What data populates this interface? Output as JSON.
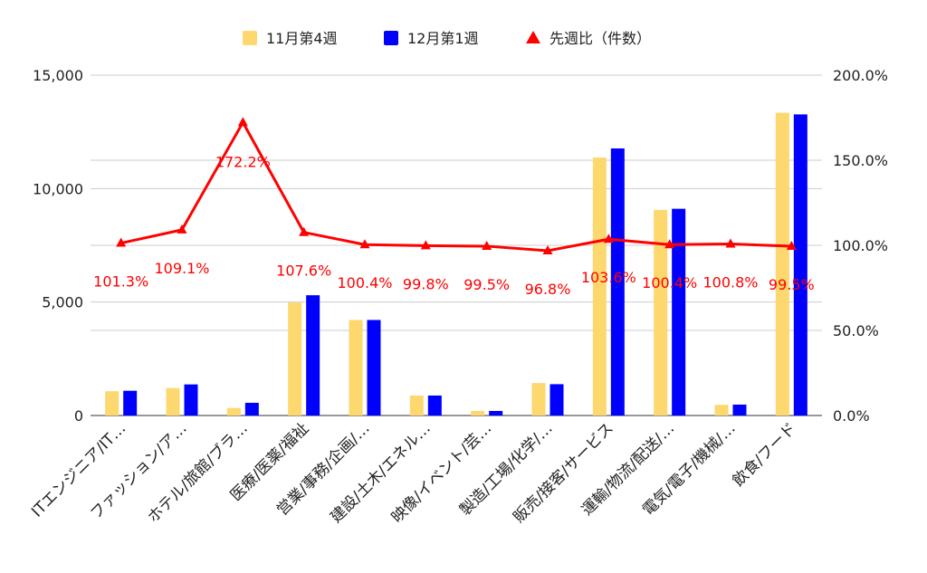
{
  "chart_data": {
    "type": "bar",
    "categories": [
      "ITエンジニア/IT…",
      "ファッション/ア…",
      "ホテル/旅館/ブラ…",
      "医療/医薬/福祉",
      "営業/事務/企画/…",
      "建設/土木/エネル…",
      "映像/イベント/芸…",
      "製造/工場/化学/…",
      "販売/接客/サービス",
      "運輸/物流/配送/…",
      "電気/電子/機械/…",
      "飲食/フード"
    ],
    "series": [
      {
        "name": "11月第4週",
        "type": "bar",
        "axis": "left",
        "color": "#FDD86F",
        "values": [
          1070,
          1210,
          330,
          4980,
          4210,
          880,
          200,
          1430,
          11370,
          9060,
          470,
          13340
        ]
      },
      {
        "name": "12月第1週",
        "type": "bar",
        "axis": "left",
        "color": "#0000FF",
        "values": [
          1090,
          1370,
          560,
          5300,
          4210,
          880,
          200,
          1380,
          11770,
          9110,
          480,
          13270
        ]
      },
      {
        "name": "先週比（件数）",
        "type": "line",
        "axis": "right",
        "color": "#FF0000",
        "values": [
          101.3,
          109.1,
          172.2,
          107.6,
          100.4,
          99.8,
          99.5,
          96.8,
          103.6,
          100.4,
          100.8,
          99.5
        ]
      }
    ],
    "data_labels": [
      "101.3%",
      "109.1%",
      "172.2%",
      "107.6%",
      "100.4%",
      "99.8%",
      "99.5%",
      "96.8%",
      "103.6%",
      "100.4%",
      "100.8%",
      "99.5%"
    ],
    "left_axis": {
      "min": 0,
      "max": 15000,
      "ticks": [
        "0",
        "5,000",
        "10,000",
        "15,000"
      ]
    },
    "right_axis": {
      "min": 0,
      "max": 200,
      "ticks": [
        "0.0%",
        "50.0%",
        "100.0%",
        "150.0%",
        "200.0%"
      ]
    },
    "grid": true,
    "legend_position": "top"
  }
}
